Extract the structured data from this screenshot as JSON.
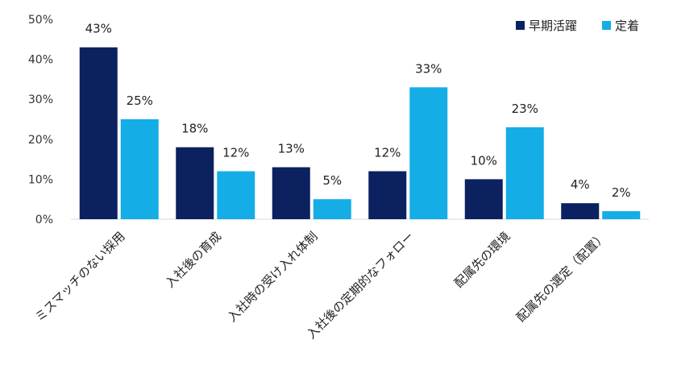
{
  "chart_data": {
    "type": "bar",
    "title": "",
    "xlabel": "",
    "ylabel": "",
    "ylim": [
      0,
      50
    ],
    "yticks": [
      0,
      10,
      20,
      30,
      40,
      50
    ],
    "ytick_labels": [
      "0%",
      "10%",
      "20%",
      "30%",
      "40%",
      "50%"
    ],
    "grid": false,
    "legend_position": "top-right",
    "categories": [
      "ミスマッチのない採用",
      "入社後の育成",
      "入社時の受け入れ体制",
      "入社後の定期的なフォロー",
      "配属先の環境",
      "配属先の選定（配置）"
    ],
    "series": [
      {
        "name": "早期活躍",
        "color": "#0b2160",
        "values": [
          43,
          18,
          13,
          12,
          10,
          4
        ],
        "labels": [
          "43%",
          "18%",
          "13%",
          "12%",
          "10%",
          "4%"
        ]
      },
      {
        "name": "定着",
        "color": "#14ade6",
        "values": [
          25,
          12,
          5,
          33,
          23,
          2
        ],
        "labels": [
          "25%",
          "12%",
          "5%",
          "33%",
          "23%",
          "2%"
        ]
      }
    ]
  }
}
